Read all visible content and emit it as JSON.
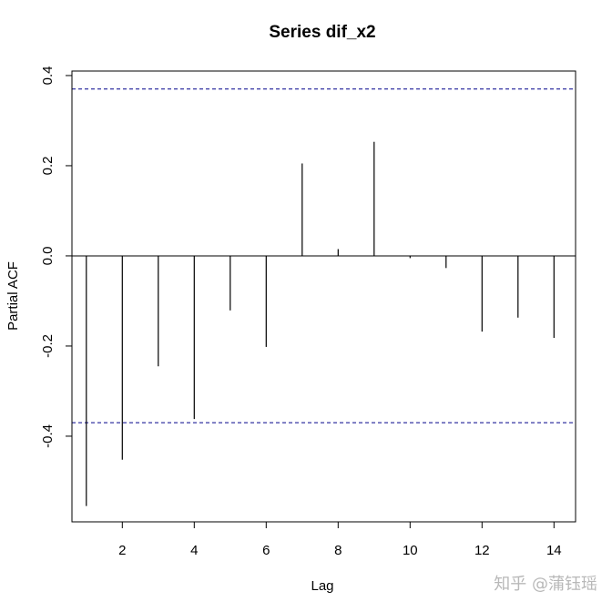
{
  "chart_data": {
    "type": "bar",
    "title": "Series  dif_x2",
    "xlabel": "Lag",
    "ylabel": "Partial ACF",
    "x": [
      1,
      2,
      3,
      4,
      5,
      6,
      7,
      8,
      9,
      10,
      11,
      12,
      13,
      14
    ],
    "values": [
      -0.555,
      -0.452,
      -0.245,
      -0.362,
      -0.121,
      -0.202,
      0.205,
      0.015,
      0.253,
      -0.005,
      -0.027,
      -0.168,
      -0.137,
      -0.182
    ],
    "confidence_limit": 0.37,
    "xlim": [
      0.6,
      14.6
    ],
    "ylim": [
      -0.59,
      0.41
    ],
    "x_ticks": [
      2,
      4,
      6,
      8,
      10,
      12,
      14
    ],
    "y_ticks": [
      -0.4,
      -0.2,
      0.0,
      0.2,
      0.4
    ],
    "x_tick_labels": [
      "2",
      "4",
      "6",
      "8",
      "10",
      "12",
      "14"
    ],
    "y_tick_labels": [
      "-0.4",
      "-0.2",
      "0.0",
      "0.2",
      "0.4"
    ],
    "grid": false,
    "colors": {
      "bars": "#000000",
      "confidence_lines": "#00008b",
      "zero_line": "#000000"
    }
  },
  "watermark": "知乎 @蒲钰瑶"
}
